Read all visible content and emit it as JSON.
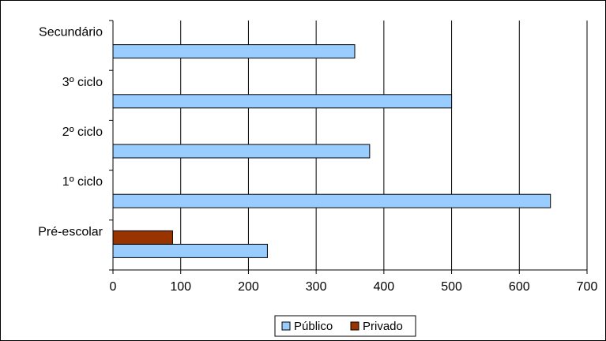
{
  "chart_data": {
    "type": "bar",
    "orientation": "horizontal",
    "categories": [
      "Pré-escolar",
      "1º ciclo",
      "2º ciclo",
      "3º ciclo",
      "Secundário"
    ],
    "series": [
      {
        "name": "Público",
        "values": [
          228,
          646,
          379,
          500,
          357
        ],
        "color": "#99ccff"
      },
      {
        "name": "Privado",
        "values": [
          88,
          0,
          0,
          0,
          0
        ],
        "color": "#993300"
      }
    ],
    "xlim": [
      0,
      700
    ],
    "xticks": [
      "0",
      "100",
      "200",
      "300",
      "400",
      "500",
      "600",
      "700"
    ],
    "grid": "vertical",
    "legend": "bottom"
  }
}
